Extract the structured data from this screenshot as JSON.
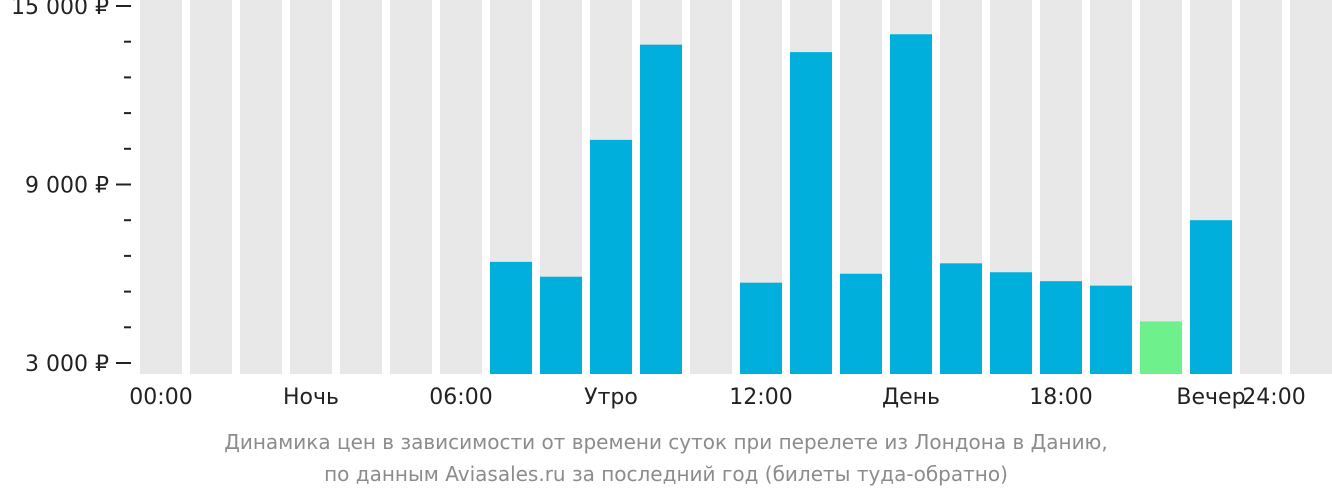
{
  "chart_data": {
    "type": "bar",
    "categories": [
      "00",
      "01",
      "02",
      "03",
      "04",
      "05",
      "06",
      "07",
      "08",
      "09",
      "10",
      "11",
      "12",
      "13",
      "14",
      "15",
      "16",
      "17",
      "18",
      "19",
      "20",
      "21",
      "22",
      "23"
    ],
    "values": [
      null,
      null,
      null,
      null,
      null,
      null,
      null,
      6400,
      5900,
      10500,
      13700,
      null,
      5700,
      13450,
      6000,
      14050,
      6350,
      6050,
      5750,
      5600,
      4400,
      7800,
      null,
      null
    ],
    "highlight_index": 20,
    "ylim": [
      3000,
      15000
    ],
    "y_ticks": [
      {
        "value": 3000,
        "label": "3 000 ₽"
      },
      {
        "value": 9000,
        "label": "9 000 ₽"
      },
      {
        "value": 15000,
        "label": "15 000 ₽"
      }
    ],
    "x_labels": [
      {
        "hour": 0,
        "label": "00:00"
      },
      {
        "hour": 3,
        "label": "Ночь"
      },
      {
        "hour": 6,
        "label": "06:00"
      },
      {
        "hour": 9,
        "label": "Утро"
      },
      {
        "hour": 12,
        "label": "12:00"
      },
      {
        "hour": 15,
        "label": "День"
      },
      {
        "hour": 18,
        "label": "18:00"
      },
      {
        "hour": 21,
        "label": "Вечер"
      },
      {
        "hour": 24,
        "label": "24:00"
      }
    ],
    "caption_line1": "Динамика цен в зависимости от времени суток при перелете из Лондона в Данию,",
    "caption_line2": "по данным Aviasales.ru за последний год (билеты туда-обратно)",
    "colors": {
      "bar": "#00afdc",
      "highlight": "#6ef08c",
      "background_slot": "#e8e8e8",
      "axis_text": "#222222",
      "caption": "#8c8c8c"
    }
  }
}
